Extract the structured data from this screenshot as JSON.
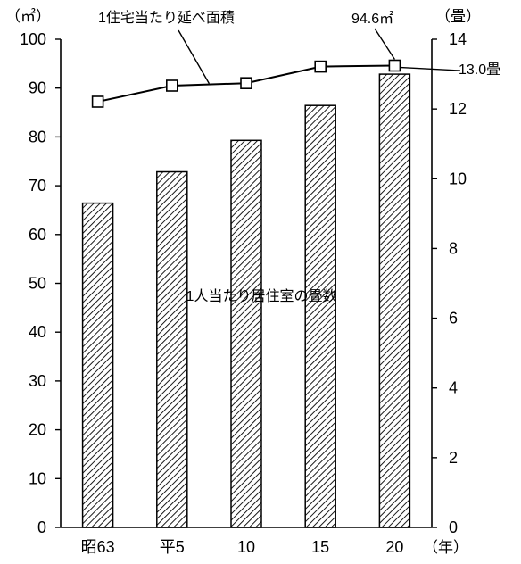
{
  "chart_data": {
    "type": "bar",
    "categories": [
      "昭63",
      "平5",
      "10",
      "15",
      "20"
    ],
    "x_unit": "（年）",
    "left_axis": {
      "unit": "（㎡）",
      "ticks": [
        "0",
        "10",
        "20",
        "30",
        "40",
        "50",
        "60",
        "70",
        "80",
        "90",
        "100"
      ],
      "ylim": [
        0,
        100
      ]
    },
    "right_axis": {
      "unit": "（畳）",
      "ticks": [
        "0",
        "2",
        "4",
        "6",
        "8",
        "10",
        "12",
        "14"
      ],
      "ylim": [
        0,
        14
      ]
    },
    "series": [
      {
        "name": "1人当たり居住室の畳数",
        "type": "bar",
        "axis": "right",
        "values": [
          9.3,
          10.2,
          11.1,
          12.1,
          13.0
        ]
      },
      {
        "name": "1住宅当たり延べ面積",
        "type": "line",
        "axis": "left",
        "values": [
          87.2,
          90.5,
          91.0,
          94.4,
          94.6
        ]
      }
    ],
    "annotations": {
      "line_end_value": "94.6㎡",
      "bar_end_value": "13.0畳"
    },
    "bar_pattern": "diagonal-hatch",
    "grid": false
  }
}
